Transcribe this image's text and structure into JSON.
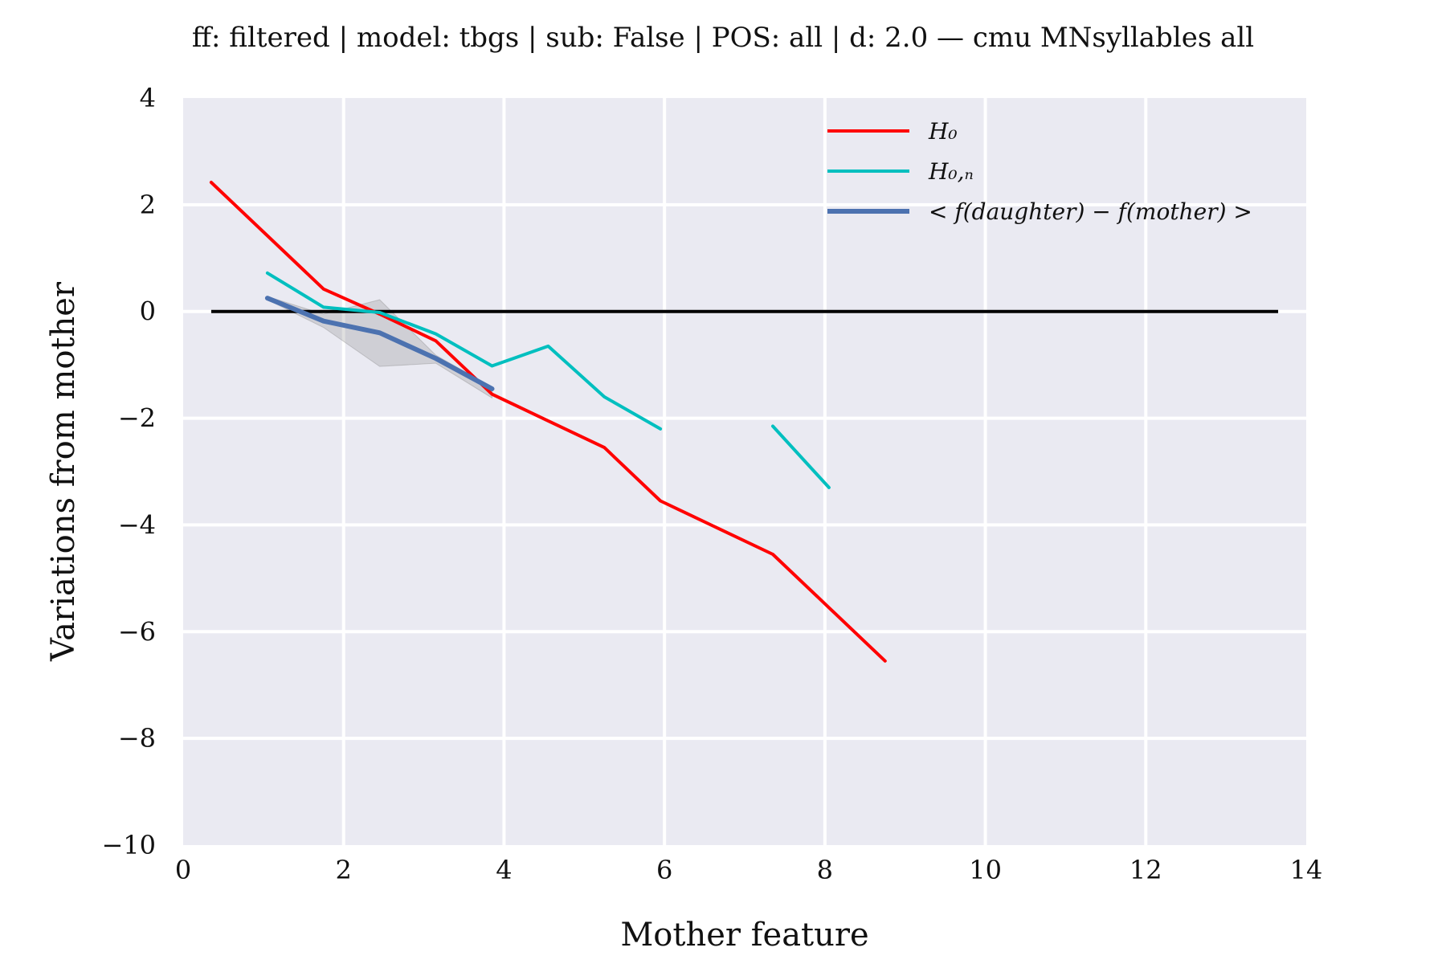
{
  "chart_data": {
    "type": "line",
    "title": "ff: filtered | model: tbgs | sub: False | POS: all | d: 2.0 — cmu MNsyllables all",
    "xlabel": "Mother feature",
    "ylabel": "Variations from mother",
    "xlim": [
      0,
      14
    ],
    "ylim": [
      -10,
      4
    ],
    "xticks": [
      0,
      2,
      4,
      6,
      8,
      10,
      12,
      14
    ],
    "yticks": [
      4,
      2,
      0,
      -2,
      -4,
      -6,
      -8,
      -10
    ],
    "xtick_labels": [
      "0",
      "2",
      "4",
      "6",
      "8",
      "10",
      "12",
      "14"
    ],
    "ytick_labels": [
      "4",
      "2",
      "0",
      "−2",
      "−4",
      "−6",
      "−8",
      "−10"
    ],
    "grid": true,
    "legend_position": "top-right",
    "reference_line": {
      "y": 0,
      "x_range": [
        0.35,
        13.65
      ],
      "color": "#000000"
    },
    "series": [
      {
        "name": "H_0",
        "label": "H₀",
        "color": "#ff0000",
        "segments": [
          [
            [
              0.35,
              2.42
            ],
            [
              1.75,
              0.42
            ],
            [
              2.45,
              -0.05
            ],
            [
              3.15,
              -0.55
            ],
            [
              3.85,
              -1.55
            ],
            [
              4.55,
              -2.05
            ],
            [
              5.25,
              -2.55
            ],
            [
              5.95,
              -3.55
            ],
            [
              6.65,
              -4.05
            ],
            [
              7.35,
              -4.55
            ],
            [
              8.05,
              -5.55
            ],
            [
              8.75,
              -6.55
            ]
          ]
        ]
      },
      {
        "name": "H_0,n",
        "label": "H₀,ₙ",
        "color": "#00bfbf",
        "segments": [
          [
            [
              1.05,
              0.72
            ],
            [
              1.75,
              0.08
            ],
            [
              2.45,
              -0.02
            ],
            [
              3.15,
              -0.42
            ],
            [
              3.85,
              -1.02
            ],
            [
              4.55,
              -0.65
            ],
            [
              5.25,
              -1.6
            ],
            [
              5.95,
              -2.2
            ]
          ],
          [
            [
              7.35,
              -2.15
            ],
            [
              8.05,
              -3.3
            ]
          ]
        ]
      },
      {
        "name": "< f(daughter) - f(mother) >",
        "label": "< f(daughter) − f(mother) >",
        "color": "#4c72b0",
        "segments": [
          [
            [
              1.05,
              0.25
            ],
            [
              1.75,
              -0.18
            ],
            [
              2.45,
              -0.4
            ],
            [
              3.15,
              -0.88
            ],
            [
              3.85,
              -1.45
            ]
          ]
        ],
        "band_upper": [
          [
            1.05,
            0.28
          ],
          [
            1.75,
            -0.05
          ],
          [
            2.45,
            0.22
          ],
          [
            3.15,
            -0.82
          ],
          [
            3.85,
            -1.42
          ]
        ],
        "band_lower": [
          [
            1.05,
            0.22
          ],
          [
            1.75,
            -0.3
          ],
          [
            2.45,
            -1.03
          ],
          [
            3.15,
            -0.97
          ],
          [
            3.85,
            -1.62
          ]
        ]
      }
    ]
  }
}
